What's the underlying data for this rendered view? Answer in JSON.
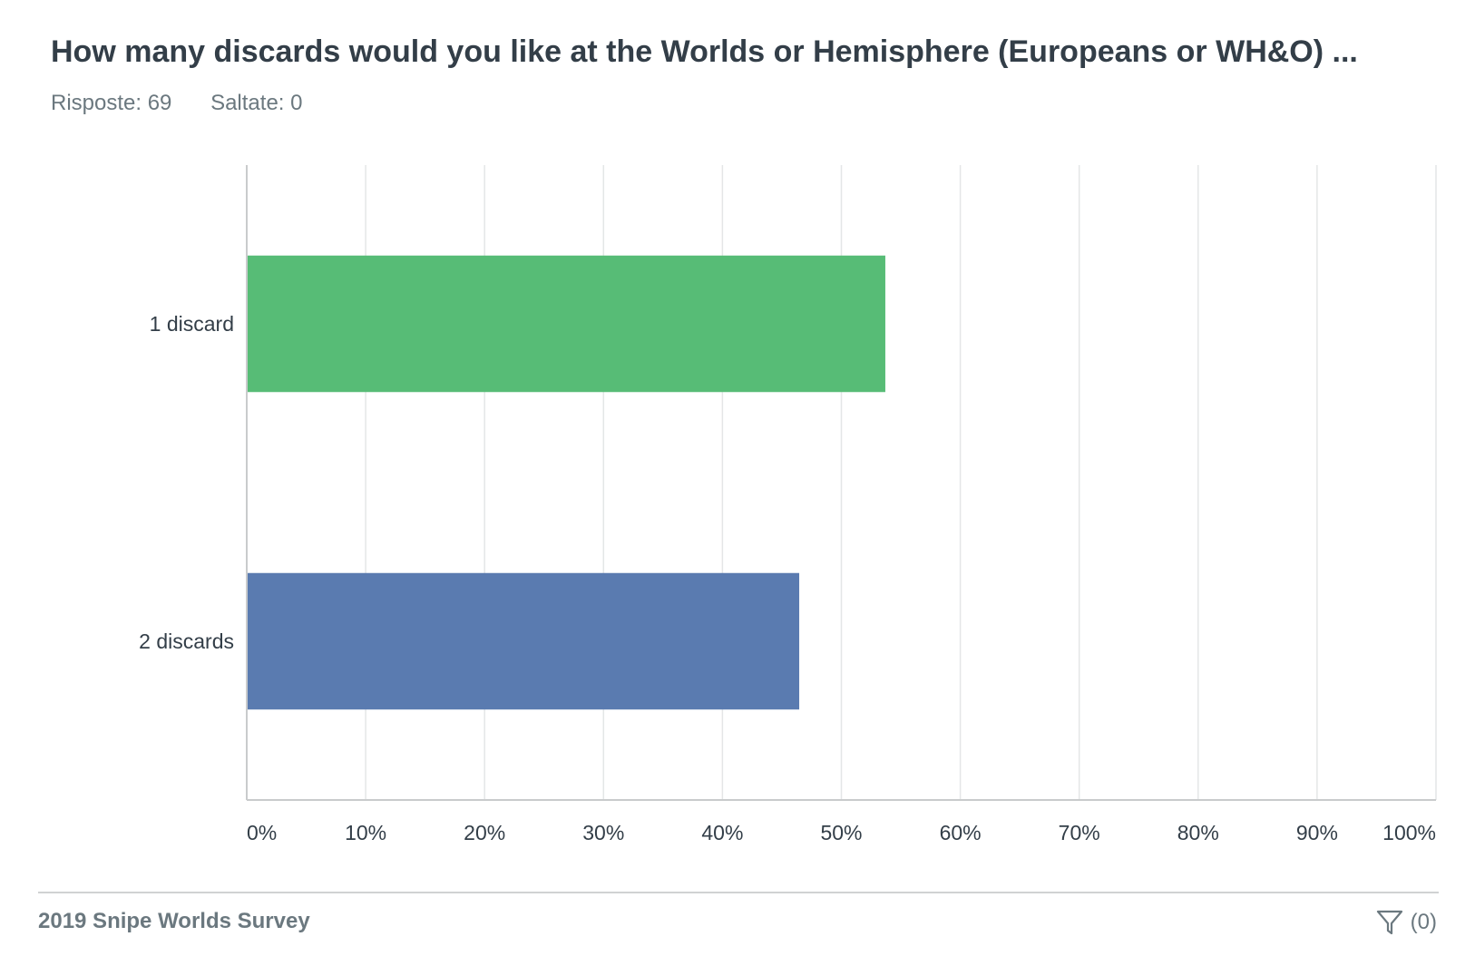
{
  "header": {
    "title": "How many discards would you like at the Worlds or Hemisphere (Europeans or WH&O) ...",
    "responses": "Risposte: 69",
    "skipped": "Saltate: 0"
  },
  "footer": {
    "survey_name": "2019 Snipe Worlds Survey",
    "filter_count": "(0)",
    "filter_icon": "filter-icon"
  },
  "chart_data": {
    "type": "bar",
    "orientation": "horizontal",
    "categories": [
      "1 discard",
      "2 discards"
    ],
    "values": [
      53.62,
      46.38
    ],
    "colors": [
      "#57bc76",
      "#5a7bb0"
    ],
    "xlim": [
      0,
      100
    ],
    "xticks": [
      "0%",
      "10%",
      "20%",
      "30%",
      "40%",
      "50%",
      "60%",
      "70%",
      "80%",
      "90%",
      "100%"
    ],
    "grid": true
  }
}
